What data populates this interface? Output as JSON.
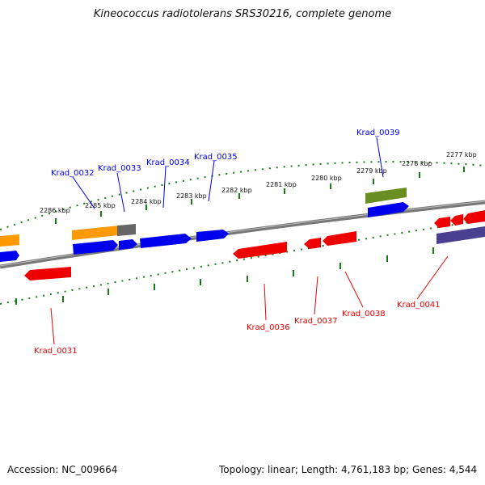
{
  "title": "Kineococcus radiotolerans SRS30216, complete genome",
  "footer": {
    "accession": "Accession: NC_009664",
    "topology": "Topology: linear; Length: 4,761,183 bp; Genes: 4,544"
  },
  "colors": {
    "forward_gene": "#0000ee",
    "reverse_gene": "#ee0000",
    "tick": "#1a7a1a",
    "backbone": "#777777",
    "orange_feature": "#ff9900",
    "grey_feature": "#666666",
    "olive_feature": "#6b8e23",
    "slate_feature": "#4b3f8f"
  },
  "kbp_ticks": [
    "2286 kbp",
    "2285 kbp",
    "2284 kbp",
    "2283 kbp",
    "2282 kbp",
    "2281 kbp",
    "2280 kbp",
    "2279 kbp",
    "2278 kbp",
    "2277 kbp"
  ],
  "gene_labels": {
    "forward": [
      "Krad_0032",
      "Krad_0033",
      "Krad_0034",
      "Krad_0035",
      "Krad_0039"
    ],
    "reverse": [
      "Krad_0031",
      "Krad_0036",
      "Krad_0037",
      "Krad_0038",
      "Krad_0041"
    ]
  }
}
